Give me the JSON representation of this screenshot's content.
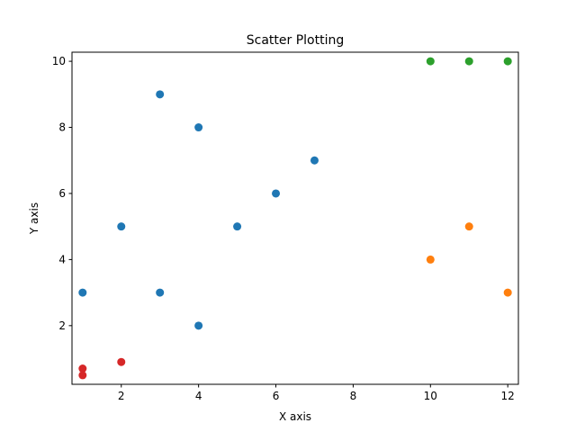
{
  "chart_data": {
    "type": "scatter",
    "title": "Scatter Plotting",
    "xlabel": "X axis",
    "ylabel": "Y axis",
    "xlim": [
      0.725,
      12.275
    ],
    "ylim": [
      0.225,
      10.275
    ],
    "xticks": [
      2,
      4,
      6,
      8,
      10,
      12
    ],
    "yticks": [
      2,
      4,
      6,
      8,
      10
    ],
    "grid": false,
    "legend": "none",
    "series": [
      {
        "color": "#1f77b4",
        "points": [
          [
            1,
            3
          ],
          [
            2,
            5
          ],
          [
            3,
            9
          ],
          [
            3,
            3
          ],
          [
            4,
            8
          ],
          [
            4,
            2
          ],
          [
            5,
            5
          ],
          [
            6,
            6
          ],
          [
            7,
            7
          ]
        ]
      },
      {
        "color": "#ff7f0e",
        "points": [
          [
            10,
            4
          ],
          [
            11,
            5
          ],
          [
            12,
            3
          ]
        ]
      },
      {
        "color": "#2ca02c",
        "points": [
          [
            10,
            10
          ],
          [
            11,
            10
          ],
          [
            12,
            10
          ]
        ]
      },
      {
        "color": "#d62728",
        "points": [
          [
            1,
            0.7
          ],
          [
            1,
            0.5
          ],
          [
            2,
            0.9
          ]
        ]
      }
    ]
  }
}
